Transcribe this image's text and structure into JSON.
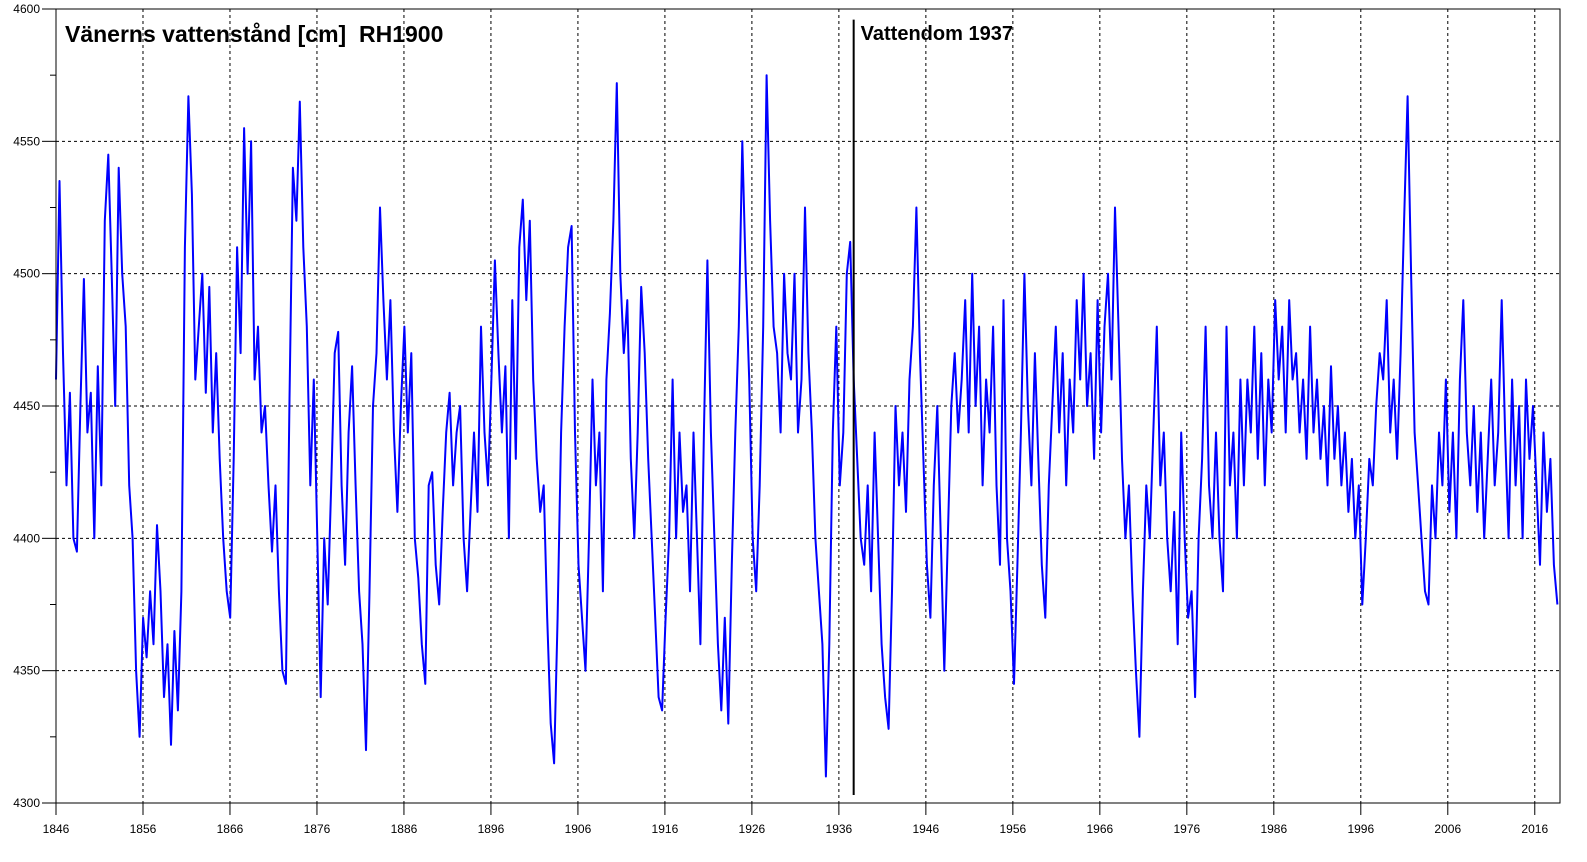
{
  "chart_data": {
    "type": "line",
    "title": "Vänerns vattenstånd [cm]  RH1900",
    "xlabel": "",
    "ylabel": "",
    "xlim": [
      1846,
      2018.9
    ],
    "ylim": [
      4300,
      4600
    ],
    "grid": true,
    "x_ticks": [
      "1846",
      "1856",
      "1866",
      "1876",
      "1886",
      "1896",
      "1906",
      "1916",
      "1926",
      "1936",
      "1946",
      "1956",
      "1966",
      "1976",
      "1986",
      "1996",
      "2006",
      "2016"
    ],
    "y_ticks": [
      "4300",
      "4350",
      "4400",
      "4450",
      "4500",
      "4550",
      "4600"
    ],
    "series": [
      {
        "name": "Vattenstånd",
        "color": "#0000ff",
        "x_start": 1846.0,
        "x_end": 2018.6,
        "values": [
          4460,
          4535,
          4470,
          4420,
          4455,
          4400,
          4395,
          4450,
          4498,
          4440,
          4455,
          4400,
          4465,
          4420,
          4520,
          4545,
          4500,
          4450,
          4540,
          4500,
          4480,
          4420,
          4400,
          4350,
          4325,
          4370,
          4355,
          4380,
          4360,
          4405,
          4380,
          4340,
          4360,
          4322,
          4365,
          4335,
          4380,
          4510,
          4567,
          4530,
          4460,
          4480,
          4500,
          4455,
          4495,
          4440,
          4470,
          4430,
          4400,
          4380,
          4370,
          4430,
          4510,
          4470,
          4555,
          4500,
          4550,
          4460,
          4480,
          4440,
          4450,
          4420,
          4395,
          4420,
          4380,
          4350,
          4345,
          4450,
          4540,
          4520,
          4565,
          4510,
          4480,
          4420,
          4460,
          4400,
          4340,
          4400,
          4375,
          4420,
          4470,
          4478,
          4420,
          4390,
          4440,
          4465,
          4420,
          4380,
          4360,
          4320,
          4380,
          4450,
          4470,
          4525,
          4490,
          4460,
          4490,
          4440,
          4410,
          4450,
          4480,
          4440,
          4470,
          4400,
          4385,
          4360,
          4345,
          4420,
          4425,
          4390,
          4375,
          4410,
          4440,
          4455,
          4420,
          4440,
          4450,
          4400,
          4380,
          4410,
          4440,
          4410,
          4480,
          4440,
          4420,
          4460,
          4505,
          4470,
          4440,
          4465,
          4400,
          4490,
          4430,
          4510,
          4528,
          4490,
          4520,
          4460,
          4430,
          4410,
          4420,
          4370,
          4330,
          4315,
          4370,
          4440,
          4480,
          4510,
          4518,
          4440,
          4390,
          4370,
          4350,
          4400,
          4460,
          4420,
          4440,
          4380,
          4460,
          4485,
          4520,
          4572,
          4500,
          4470,
          4490,
          4430,
          4400,
          4440,
          4495,
          4470,
          4430,
          4400,
          4370,
          4340,
          4335,
          4370,
          4400,
          4460,
          4400,
          4440,
          4410,
          4420,
          4380,
          4440,
          4400,
          4360,
          4440,
          4505,
          4440,
          4400,
          4360,
          4335,
          4370,
          4330,
          4390,
          4440,
          4480,
          4550,
          4500,
          4460,
          4400,
          4380,
          4420,
          4480,
          4575,
          4520,
          4480,
          4470,
          4440,
          4500,
          4470,
          4460,
          4500,
          4440,
          4460,
          4525,
          4470,
          4440,
          4400,
          4380,
          4360,
          4310,
          4360,
          4440,
          4480,
          4420,
          4440,
          4500,
          4512,
          4460,
          4430,
          4400,
          4390,
          4420,
          4380,
          4440,
          4400,
          4360,
          4340,
          4328,
          4380,
          4450,
          4420,
          4440,
          4410,
          4460,
          4480,
          4525,
          4470,
          4430,
          4390,
          4370,
          4420,
          4450,
          4400,
          4350,
          4400,
          4450,
          4470,
          4440,
          4460,
          4490,
          4440,
          4500,
          4450,
          4480,
          4420,
          4460,
          4440,
          4480,
          4420,
          4390,
          4490,
          4400,
          4380,
          4345,
          4390,
          4440,
          4500,
          4450,
          4420,
          4470,
          4430,
          4390,
          4370,
          4420,
          4450,
          4480,
          4440,
          4470,
          4420,
          4460,
          4440,
          4490,
          4460,
          4500,
          4450,
          4470,
          4430,
          4490,
          4440,
          4480,
          4500,
          4460,
          4525,
          4480,
          4430,
          4400,
          4420,
          4380,
          4350,
          4325,
          4380,
          4420,
          4400,
          4440,
          4480,
          4420,
          4440,
          4400,
          4380,
          4410,
          4360,
          4440,
          4400,
          4370,
          4380,
          4340,
          4400,
          4430,
          4480,
          4420,
          4400,
          4440,
          4400,
          4380,
          4480,
          4420,
          4440,
          4400,
          4460,
          4420,
          4460,
          4440,
          4480,
          4430,
          4470,
          4420,
          4460,
          4440,
          4490,
          4460,
          4480,
          4440,
          4490,
          4460,
          4470,
          4440,
          4460,
          4430,
          4480,
          4440,
          4460,
          4430,
          4450,
          4420,
          4465,
          4430,
          4450,
          4420,
          4440,
          4410,
          4430,
          4400,
          4420,
          4375,
          4400,
          4430,
          4420,
          4450,
          4470,
          4460,
          4490,
          4440,
          4460,
          4430,
          4470,
          4520,
          4567,
          4500,
          4440,
          4420,
          4400,
          4380,
          4375,
          4420,
          4400,
          4440,
          4420,
          4460,
          4410,
          4440,
          4400,
          4460,
          4490,
          4440,
          4420,
          4450,
          4410,
          4440,
          4400,
          4430,
          4460,
          4420,
          4440,
          4490,
          4440,
          4400,
          4460,
          4420,
          4450,
          4400,
          4460,
          4430,
          4450,
          4420,
          4390,
          4440,
          4410,
          4430,
          4390,
          4375
        ]
      }
    ],
    "annotations": [
      {
        "text": "Vattendom 1937",
        "x": 1937.7,
        "y_range": [
          4303,
          4596
        ],
        "color": "#000000"
      }
    ]
  }
}
